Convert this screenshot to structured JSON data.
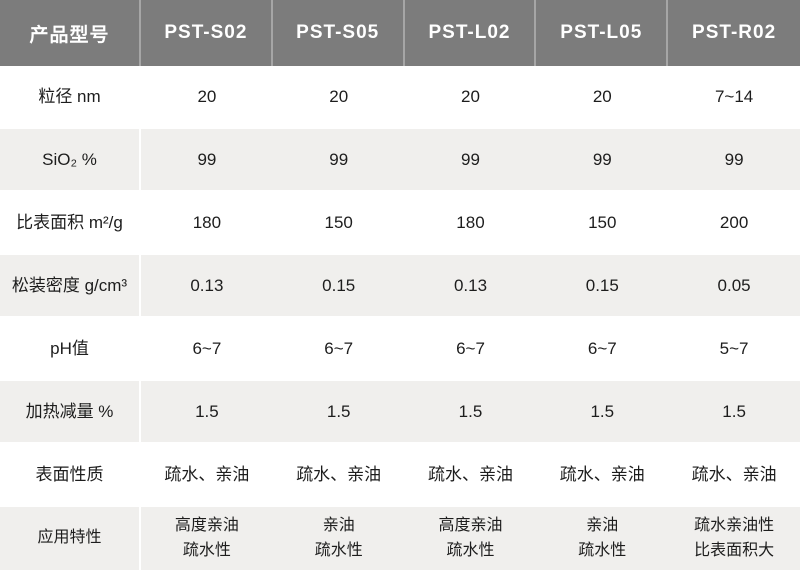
{
  "header": {
    "label_column": "产品型号",
    "models": [
      "PST-S02",
      "PST-S05",
      "PST-L02",
      "PST-L05",
      "PST-R02"
    ]
  },
  "rows": [
    {
      "label": "粒径 nm",
      "values": [
        "20",
        "20",
        "20",
        "20",
        "7~14"
      ]
    },
    {
      "label": "SiO₂ %",
      "values": [
        "99",
        "99",
        "99",
        "99",
        "99"
      ]
    },
    {
      "label": "比表面积 m²/g",
      "values": [
        "180",
        "150",
        "180",
        "150",
        "200"
      ]
    },
    {
      "label": "松装密度 g/cm³",
      "values": [
        "0.13",
        "0.15",
        "0.13",
        "0.15",
        "0.05"
      ]
    },
    {
      "label": "pH值",
      "values": [
        "6~7",
        "6~7",
        "6~7",
        "6~7",
        "5~7"
      ]
    },
    {
      "label": "加热减量 %",
      "values": [
        "1.5",
        "1.5",
        "1.5",
        "1.5",
        "1.5"
      ]
    },
    {
      "label": "表面性质",
      "values": [
        "疏水、亲油",
        "疏水、亲油",
        "疏水、亲油",
        "疏水、亲油",
        "疏水、亲油"
      ]
    },
    {
      "label": "应用特性",
      "values": [
        "高度亲油\n疏水性",
        "亲油\n疏水性",
        "高度亲油\n疏水性",
        "亲油\n疏水性",
        "疏水亲油性\n比表面积大"
      ]
    }
  ],
  "colors": {
    "header_bg": "#7c7c7c",
    "header_text": "#ffffff",
    "alt_row_bg": "#f0efed",
    "body_text": "#1d1d1d",
    "header_divider": "#a6a6a6"
  }
}
